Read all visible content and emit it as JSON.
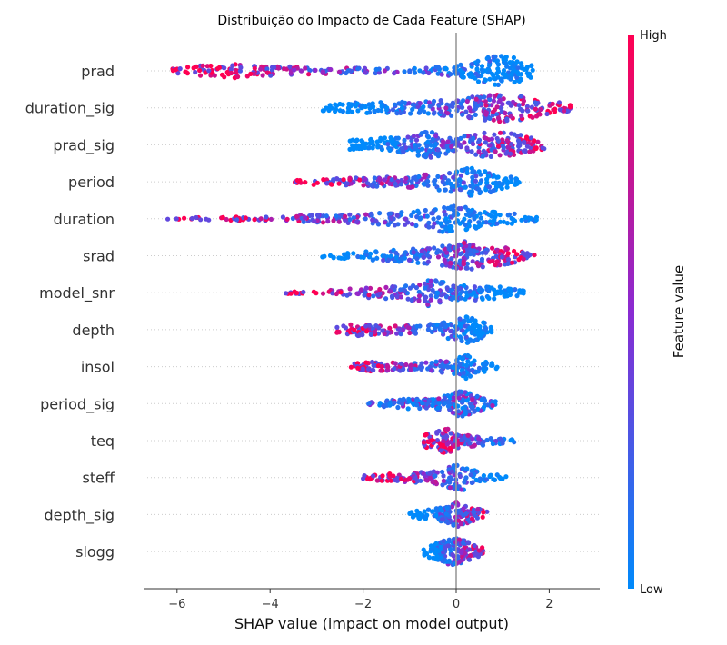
{
  "chart_data": {
    "type": "scatter",
    "title": "Distribuição do Impacto de Cada Feature (SHAP)",
    "xlabel": "SHAP value (impact on model output)",
    "xticks": [
      -6,
      -4,
      -2,
      0,
      2
    ],
    "xlim": [
      -6.7,
      3.1
    ],
    "features": [
      "prad",
      "duration_sig",
      "prad_sig",
      "period",
      "duration",
      "srad",
      "model_snr",
      "depth",
      "insol",
      "period_sig",
      "teq",
      "steff",
      "depth_sig",
      "slogg"
    ],
    "colorbar": {
      "label": "Feature value",
      "high": "High",
      "low": "Low",
      "high_color": "#ff0052",
      "mid_color": "#8a2bd2",
      "low_color": "#008afb"
    },
    "series": [
      {
        "feature": "prad",
        "min": -6.1,
        "max": 1.7,
        "high_side": "left",
        "density": [
          [
            -6.1,
            0.15
          ],
          [
            -5.6,
            0.35
          ],
          [
            -5.0,
            0.5
          ],
          [
            -4.5,
            0.4
          ],
          [
            -3.8,
            0.3
          ],
          [
            -3.0,
            0.2
          ],
          [
            -2.0,
            0.18
          ],
          [
            -1.0,
            0.18
          ],
          [
            0.0,
            0.35
          ],
          [
            0.3,
            0.5
          ],
          [
            0.6,
            0.95
          ],
          [
            0.9,
            1.0
          ],
          [
            1.2,
            0.9
          ],
          [
            1.5,
            0.6
          ],
          [
            1.7,
            0.3
          ]
        ]
      },
      {
        "feature": "duration_sig",
        "min": -3.0,
        "max": 2.6,
        "high_side": "right",
        "density": [
          [
            -3.0,
            0.15
          ],
          [
            -2.5,
            0.3
          ],
          [
            -2.0,
            0.4
          ],
          [
            -1.5,
            0.35
          ],
          [
            -1.0,
            0.4
          ],
          [
            -0.5,
            0.45
          ],
          [
            0.0,
            0.55
          ],
          [
            0.5,
            0.8
          ],
          [
            1.0,
            0.9
          ],
          [
            1.5,
            0.75
          ],
          [
            2.0,
            0.45
          ],
          [
            2.6,
            0.15
          ]
        ]
      },
      {
        "feature": "prad_sig",
        "min": -2.3,
        "max": 1.9,
        "high_side": "right",
        "density": [
          [
            -2.3,
            0.3
          ],
          [
            -1.5,
            0.45
          ],
          [
            -1.0,
            0.5
          ],
          [
            -0.7,
            0.9
          ],
          [
            -0.3,
            0.8
          ],
          [
            0.0,
            0.4
          ],
          [
            0.2,
            0.6
          ],
          [
            0.5,
            0.75
          ],
          [
            0.9,
            0.85
          ],
          [
            1.3,
            0.7
          ],
          [
            1.9,
            0.25
          ]
        ]
      },
      {
        "feature": "period",
        "min": -3.5,
        "max": 1.4,
        "high_side": "left",
        "density": [
          [
            -3.5,
            0.1
          ],
          [
            -3.0,
            0.2
          ],
          [
            -2.5,
            0.25
          ],
          [
            -2.0,
            0.3
          ],
          [
            -1.5,
            0.35
          ],
          [
            -1.0,
            0.4
          ],
          [
            -0.5,
            0.5
          ],
          [
            0.0,
            0.7
          ],
          [
            0.3,
            0.95
          ],
          [
            0.6,
            0.8
          ],
          [
            1.0,
            0.5
          ],
          [
            1.4,
            0.15
          ]
        ]
      },
      {
        "feature": "duration",
        "min": -6.2,
        "max": 1.8,
        "high_side": "left",
        "density": [
          [
            -6.2,
            0.05
          ],
          [
            -5.6,
            0.1
          ],
          [
            -4.8,
            0.12
          ],
          [
            -4.2,
            0.15
          ],
          [
            -3.5,
            0.2
          ],
          [
            -2.8,
            0.25
          ],
          [
            -2.0,
            0.3
          ],
          [
            -1.5,
            0.4
          ],
          [
            -1.0,
            0.5
          ],
          [
            -0.5,
            0.75
          ],
          [
            -0.2,
            0.95
          ],
          [
            0.2,
            0.8
          ],
          [
            0.6,
            0.5
          ],
          [
            1.2,
            0.35
          ],
          [
            1.8,
            0.15
          ]
        ]
      },
      {
        "feature": "srad",
        "min": -2.9,
        "max": 1.7,
        "high_side": "right",
        "density": [
          [
            -2.9,
            0.1
          ],
          [
            -2.3,
            0.2
          ],
          [
            -1.8,
            0.3
          ],
          [
            -1.2,
            0.4
          ],
          [
            -0.7,
            0.5
          ],
          [
            -0.2,
            0.7
          ],
          [
            0.1,
            0.95
          ],
          [
            0.4,
            0.85
          ],
          [
            0.8,
            0.7
          ],
          [
            1.2,
            0.5
          ],
          [
            1.7,
            0.15
          ]
        ]
      },
      {
        "feature": "model_snr",
        "min": -3.7,
        "max": 1.5,
        "high_side": "left",
        "density": [
          [
            -3.7,
            0.08
          ],
          [
            -3.2,
            0.08
          ],
          [
            -2.6,
            0.2
          ],
          [
            -2.0,
            0.3
          ],
          [
            -1.5,
            0.4
          ],
          [
            -1.0,
            0.45
          ],
          [
            -0.6,
            0.85
          ],
          [
            -0.3,
            0.75
          ],
          [
            0.0,
            0.45
          ],
          [
            0.4,
            0.55
          ],
          [
            0.8,
            0.45
          ],
          [
            1.5,
            0.15
          ]
        ]
      },
      {
        "feature": "depth",
        "min": -2.6,
        "max": 0.8,
        "high_side": "left",
        "density": [
          [
            -2.6,
            0.2
          ],
          [
            -2.2,
            0.4
          ],
          [
            -1.8,
            0.35
          ],
          [
            -1.2,
            0.3
          ],
          [
            -0.7,
            0.35
          ],
          [
            -0.3,
            0.5
          ],
          [
            0.0,
            0.7
          ],
          [
            0.3,
            0.9
          ],
          [
            0.5,
            0.6
          ],
          [
            0.8,
            0.2
          ]
        ]
      },
      {
        "feature": "insol",
        "min": -2.3,
        "max": 0.9,
        "high_side": "left",
        "density": [
          [
            -2.3,
            0.15
          ],
          [
            -2.0,
            0.35
          ],
          [
            -1.5,
            0.3
          ],
          [
            -1.0,
            0.25
          ],
          [
            -0.5,
            0.3
          ],
          [
            0.0,
            0.5
          ],
          [
            0.2,
            0.85
          ],
          [
            0.5,
            0.4
          ],
          [
            0.9,
            0.15
          ]
        ]
      },
      {
        "feature": "period_sig",
        "min": -1.9,
        "max": 0.9,
        "high_side": "mixed",
        "density": [
          [
            -1.9,
            0.1
          ],
          [
            -1.5,
            0.25
          ],
          [
            -1.0,
            0.35
          ],
          [
            -0.5,
            0.45
          ],
          [
            -0.2,
            0.5
          ],
          [
            0.1,
            0.9
          ],
          [
            0.4,
            0.6
          ],
          [
            0.7,
            0.3
          ],
          [
            0.9,
            0.1
          ]
        ]
      },
      {
        "feature": "teq",
        "min": -0.7,
        "max": 1.4,
        "high_side": "left",
        "density": [
          [
            -0.7,
            0.4
          ],
          [
            -0.4,
            0.65
          ],
          [
            -0.2,
            0.9
          ],
          [
            0.0,
            0.5
          ],
          [
            0.3,
            0.4
          ],
          [
            0.7,
            0.3
          ],
          [
            1.0,
            0.2
          ],
          [
            1.4,
            0.08
          ]
        ]
      },
      {
        "feature": "steff",
        "min": -2.0,
        "max": 1.1,
        "high_side": "left",
        "density": [
          [
            -2.0,
            0.15
          ],
          [
            -1.5,
            0.25
          ],
          [
            -1.0,
            0.3
          ],
          [
            -0.5,
            0.4
          ],
          [
            -0.2,
            0.6
          ],
          [
            0.0,
            0.95
          ],
          [
            0.2,
            0.8
          ],
          [
            0.5,
            0.35
          ],
          [
            1.1,
            0.1
          ]
        ]
      },
      {
        "feature": "depth_sig",
        "min": -1.0,
        "max": 0.7,
        "high_side": "right",
        "density": [
          [
            -1.0,
            0.2
          ],
          [
            -0.5,
            0.35
          ],
          [
            -0.1,
            0.6
          ],
          [
            0.0,
            0.85
          ],
          [
            0.2,
            0.6
          ],
          [
            0.5,
            0.35
          ],
          [
            0.7,
            0.15
          ]
        ]
      },
      {
        "feature": "slogg",
        "min": -0.7,
        "max": 0.6,
        "high_side": "right",
        "density": [
          [
            -0.7,
            0.3
          ],
          [
            -0.4,
            0.55
          ],
          [
            -0.1,
            0.9
          ],
          [
            0.1,
            0.8
          ],
          [
            0.3,
            0.55
          ],
          [
            0.6,
            0.2
          ]
        ]
      }
    ]
  }
}
